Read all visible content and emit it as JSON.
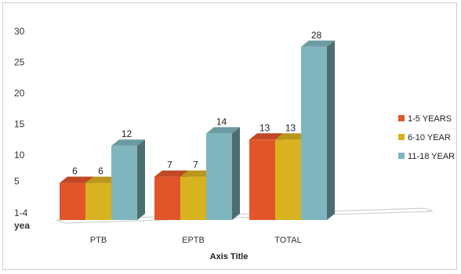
{
  "chart_data": {
    "type": "bar",
    "categories": [
      "PTB",
      "EPTB",
      "TOTAL"
    ],
    "series": [
      {
        "name": "1-5 YEARS",
        "values": [
          6,
          7,
          13
        ],
        "color": "#e2552a"
      },
      {
        "name": "6-10 YEAR",
        "values": [
          6,
          7,
          13
        ],
        "color": "#d9b21f"
      },
      {
        "name": "11-18 YEAR",
        "values": [
          12,
          14,
          28
        ],
        "color": "#7fb6be"
      }
    ],
    "y_ticks": [
      "30",
      "25",
      "20",
      "15",
      "10",
      "5"
    ],
    "ylim": [
      0,
      30
    ],
    "y_extra_labels": [
      "1-4",
      "yea"
    ],
    "xlabel": "Axis Title",
    "ylabel": "",
    "title": "",
    "legend_position": "right",
    "grid": false,
    "three_d": true
  }
}
